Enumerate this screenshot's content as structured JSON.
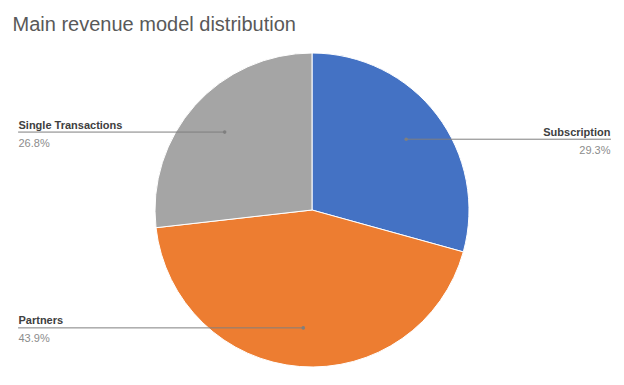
{
  "chart_data": {
    "type": "pie",
    "title": "Main revenue model distribution",
    "categories": [
      "Subscription",
      "Partners",
      "Single Transactions"
    ],
    "values": [
      29.3,
      43.9,
      26.8
    ],
    "value_labels": [
      "29.3%",
      "43.9%",
      "26.8%"
    ],
    "colors": [
      "#4472c4",
      "#ed7d31",
      "#a5a5a5"
    ],
    "data_labels": true
  }
}
